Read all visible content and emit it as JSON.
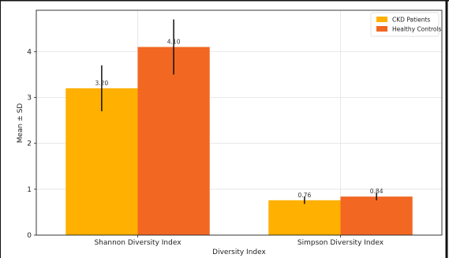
{
  "chart_data": {
    "type": "bar",
    "title": "",
    "xlabel": "Diversity Index",
    "ylabel": "Mean ± SD",
    "categories": [
      "Shannon Diversity Index",
      "Simpson Diversity Index"
    ],
    "series": [
      {
        "name": "CKD Patients",
        "color": "#FFB000",
        "values": [
          3.2,
          0.76
        ],
        "errors": [
          0.5,
          0.08
        ],
        "labels": [
          "3.20",
          "0.76"
        ]
      },
      {
        "name": "Healthy Controls",
        "color": "#F26722",
        "values": [
          4.1,
          0.84
        ],
        "errors": [
          0.6,
          0.08
        ],
        "labels": [
          "4.10",
          "0.84"
        ]
      }
    ],
    "ylim": [
      0,
      4.9
    ],
    "yticks": [
      0,
      1,
      2,
      3,
      4
    ],
    "grid": true,
    "legend_position": "top-right"
  }
}
